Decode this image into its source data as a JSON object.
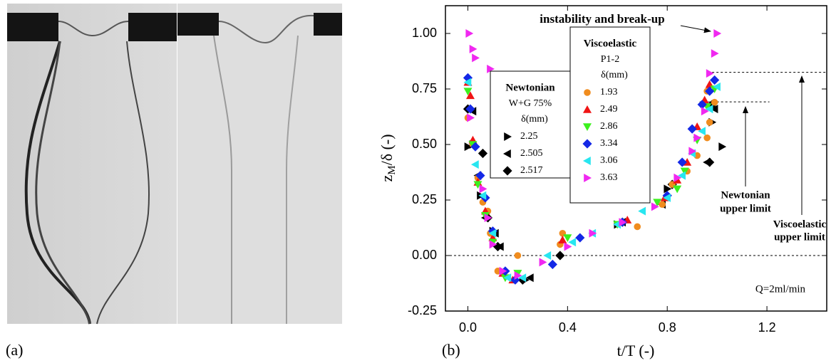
{
  "panel_labels": [
    "(a)",
    "(b)"
  ],
  "chart_data": {
    "type": "scatter",
    "xlabel": "t/T (-)",
    "ylabel_parts": [
      "z",
      "M",
      "/δ (-)"
    ],
    "xlim": [
      -0.09,
      1.44
    ],
    "ylim": [
      -0.25,
      1.125
    ],
    "xticks": [
      {
        "value": 0,
        "label": "0.0"
      },
      0.4,
      0.8,
      1.2
    ],
    "yticks": [
      -0.25,
      {
        "value": 0,
        "label": "0.00"
      },
      0.25,
      {
        "value": 0.5,
        "label": "0.50"
      },
      0.75,
      {
        "value": 1,
        "label": "1.00"
      }
    ],
    "reference_lines": [
      {
        "y": 0,
        "x": [
          -0.09,
          1.44
        ]
      },
      {
        "y": 0.692,
        "x": [
          0.93,
          1.21
        ]
      },
      {
        "y": 0.825,
        "x": [
          0.98,
          1.44
        ]
      }
    ],
    "annotations": {
      "breakup": "instability and break-up",
      "newtonian_limit": [
        "Newtonian",
        "upper limit"
      ],
      "viscoelastic_limit": [
        "Viscoelastic",
        "upper limit"
      ],
      "flow": "Q=2ml/min"
    },
    "groups": [
      {
        "title": "Newtonian",
        "subtitle": "W+G 75%",
        "heading": "δ(mm)",
        "series": [
          {
            "name": "2.25",
            "color": "#000000",
            "marker": "triangle-right",
            "x": [
              0.0,
              0.02,
              0.05,
              0.1,
              0.23,
              0.6,
              0.8,
              0.98,
              1.02
            ],
            "values": [
              0.49,
              0.5,
              0.27,
              0.11,
              -0.11,
              0.14,
              0.3,
              0.6,
              0.49
            ]
          },
          {
            "name": "2.505",
            "color": "#000000",
            "marker": "triangle-left",
            "x": [
              0.02,
              0.04,
              0.07,
              0.11,
              0.13,
              0.25,
              0.62,
              0.78,
              0.96,
              0.99
            ],
            "values": [
              0.65,
              0.36,
              0.17,
              0.1,
              0.04,
              -0.1,
              0.15,
              0.23,
              0.42,
              0.66
            ]
          },
          {
            "name": "2.517",
            "color": "#000000",
            "marker": "diamond",
            "x": [
              0.0,
              0.06,
              0.08,
              0.12,
              0.22,
              0.37,
              0.62,
              0.82,
              0.98,
              0.97
            ],
            "values": [
              0.66,
              0.46,
              0.17,
              0.04,
              -0.11,
              0.0,
              0.15,
              0.32,
              0.68,
              0.42
            ]
          }
        ]
      },
      {
        "title": "Viscoelastic",
        "subtitle": "P1-2",
        "heading": "δ(mm)",
        "series": [
          {
            "name": "1.93",
            "color": "#f08c1e",
            "marker": "circle",
            "x": [
              0.0,
              0.02,
              0.04,
              0.06,
              0.08,
              0.09,
              0.12,
              0.2,
              0.38,
              0.37,
              0.68,
              0.78,
              0.82,
              0.88,
              0.92,
              0.96,
              0.97,
              0.99,
              0.96
            ],
            "values": [
              0.62,
              0.5,
              0.35,
              0.24,
              0.2,
              0.1,
              -0.07,
              0.0,
              0.1,
              0.05,
              0.13,
              0.23,
              0.32,
              0.38,
              0.45,
              0.53,
              0.6,
              0.69,
              0.74
            ]
          },
          {
            "name": "2.49",
            "color": "#f01414",
            "marker": "triangle-up",
            "x": [
              0.0,
              0.01,
              0.02,
              0.04,
              0.07,
              0.1,
              0.14,
              0.18,
              0.38,
              0.64,
              0.79,
              0.84,
              0.88,
              0.92,
              0.95,
              0.97
            ],
            "values": [
              0.78,
              0.72,
              0.52,
              0.33,
              0.2,
              0.08,
              -0.08,
              -0.11,
              0.07,
              0.16,
              0.26,
              0.34,
              0.42,
              0.58,
              0.7,
              0.77
            ]
          },
          {
            "name": "2.86",
            "color": "#3cf01e",
            "marker": "triangle-down",
            "x": [
              0.0,
              0.02,
              0.04,
              0.07,
              0.1,
              0.15,
              0.2,
              0.4,
              0.6,
              0.76,
              0.84,
              0.87,
              0.92,
              0.96,
              0.99
            ],
            "values": [
              0.74,
              0.5,
              0.32,
              0.18,
              0.06,
              -0.1,
              -0.08,
              0.08,
              0.14,
              0.24,
              0.3,
              0.38,
              0.52,
              0.67,
              0.75
            ]
          },
          {
            "name": "3.34",
            "color": "#1428e6",
            "marker": "diamond",
            "x": [
              0.0,
              0.01,
              0.03,
              0.05,
              0.07,
              0.1,
              0.15,
              0.19,
              0.34,
              0.45,
              0.62,
              0.8,
              0.86,
              0.9,
              0.94,
              0.97,
              0.99
            ],
            "values": [
              0.8,
              0.66,
              0.49,
              0.36,
              0.26,
              0.11,
              -0.07,
              -0.11,
              -0.04,
              0.08,
              0.15,
              0.27,
              0.42,
              0.57,
              0.68,
              0.74,
              0.79
            ]
          },
          {
            "name": "3.06",
            "color": "#28e6f0",
            "marker": "triangle-left",
            "x": [
              0.0,
              0.03,
              0.06,
              0.1,
              0.16,
              0.22,
              0.32,
              0.42,
              0.5,
              0.6,
              0.7,
              0.8,
              0.86,
              0.9,
              0.94,
              0.97,
              1.0
            ],
            "values": [
              0.78,
              0.41,
              0.27,
              0.1,
              -0.1,
              -0.1,
              0.0,
              0.06,
              0.1,
              0.14,
              0.2,
              0.26,
              0.36,
              0.46,
              0.56,
              0.66,
              0.76
            ]
          },
          {
            "name": "3.63",
            "color": "#f028f0",
            "marker": "triangle-right",
            "x": [
              0.005,
              0.02,
              0.03,
              0.09,
              0.01,
              0.06,
              0.08,
              0.1,
              0.14,
              0.2,
              0.3,
              0.4,
              0.5,
              0.62,
              0.75,
              0.84,
              0.9,
              0.92,
              0.95,
              0.97,
              0.99,
              1.0
            ],
            "values": [
              1.0,
              0.93,
              0.89,
              0.84,
              0.62,
              0.3,
              0.17,
              0.05,
              -0.07,
              -0.09,
              -0.03,
              0.04,
              0.1,
              0.15,
              0.22,
              0.35,
              0.47,
              0.53,
              0.65,
              0.82,
              0.91,
              1.0
            ]
          }
        ]
      }
    ]
  }
}
